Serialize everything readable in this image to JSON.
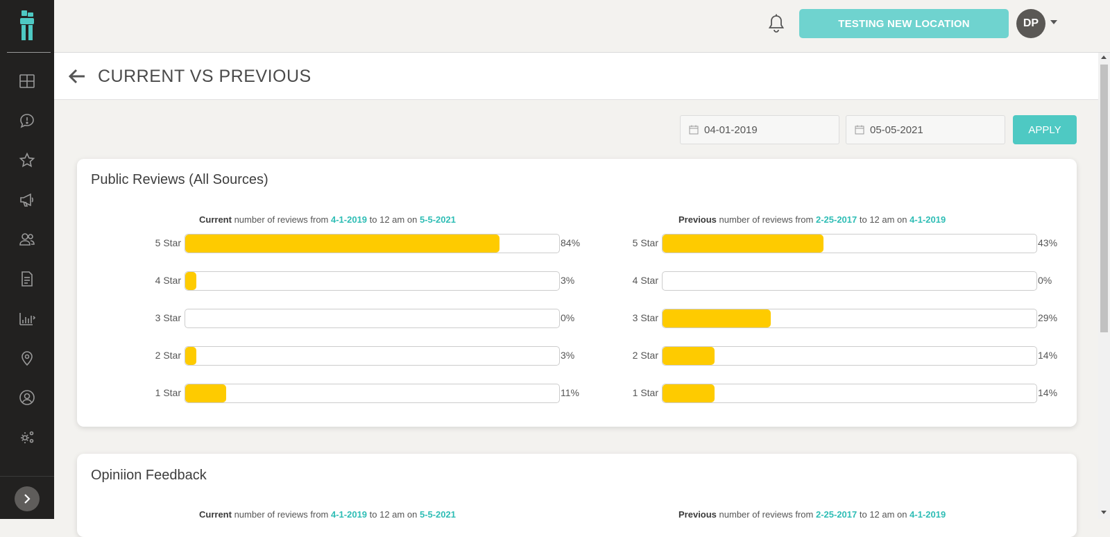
{
  "topbar": {
    "location_button": "TESTING NEW LOCATION",
    "avatar_initials": "DP"
  },
  "sidebar": {
    "items": [
      "dashboard-icon",
      "feedback-icon",
      "star-icon",
      "megaphone-icon",
      "users-icon",
      "document-icon",
      "analytics-icon",
      "location-pin-icon",
      "user-circle-icon",
      "settings-icon"
    ]
  },
  "header": {
    "title": "CURRENT VS PREVIOUS"
  },
  "filters": {
    "start_date": "04-01-2019",
    "end_date": "05-05-2021",
    "apply_label": "APPLY"
  },
  "colors": {
    "accent": "#4ec9c3",
    "bar": "#fecb00",
    "sidebar": "#222120"
  },
  "public_reviews": {
    "title": "Public Reviews (All Sources)",
    "current": {
      "caption_strong": "Current",
      "caption_mid": " number of reviews from ",
      "from": "4-1-2019",
      "caption_to": " to 12 am on ",
      "to": "5-5-2021",
      "bars": [
        {
          "label": "5 Star",
          "pct_text": "84%",
          "value": 84
        },
        {
          "label": "4 Star",
          "pct_text": "3%",
          "value": 3
        },
        {
          "label": "3 Star",
          "pct_text": "0%",
          "value": 0
        },
        {
          "label": "2 Star",
          "pct_text": "3%",
          "value": 3
        },
        {
          "label": "1 Star",
          "pct_text": "11%",
          "value": 11
        }
      ]
    },
    "previous": {
      "caption_strong": "Previous",
      "caption_mid": " number of reviews from ",
      "from": "2-25-2017",
      "caption_to": " to 12 am on ",
      "to": "4-1-2019",
      "bars": [
        {
          "label": "5 Star",
          "pct_text": "43%",
          "value": 43
        },
        {
          "label": "4 Star",
          "pct_text": "0%",
          "value": 0
        },
        {
          "label": "3 Star",
          "pct_text": "29%",
          "value": 29
        },
        {
          "label": "2 Star",
          "pct_text": "14%",
          "value": 14
        },
        {
          "label": "1 Star",
          "pct_text": "14%",
          "value": 14
        }
      ]
    }
  },
  "opinion_feedback": {
    "title": "Opiniion Feedback",
    "current": {
      "caption_strong": "Current",
      "caption_mid": " number of reviews from ",
      "from": "4-1-2019",
      "caption_to": " to 12 am on ",
      "to": "5-5-2021"
    },
    "previous": {
      "caption_strong": "Previous",
      "caption_mid": " number of reviews from ",
      "from": "2-25-2017",
      "caption_to": " to 12 am on ",
      "to": "4-1-2019"
    }
  }
}
